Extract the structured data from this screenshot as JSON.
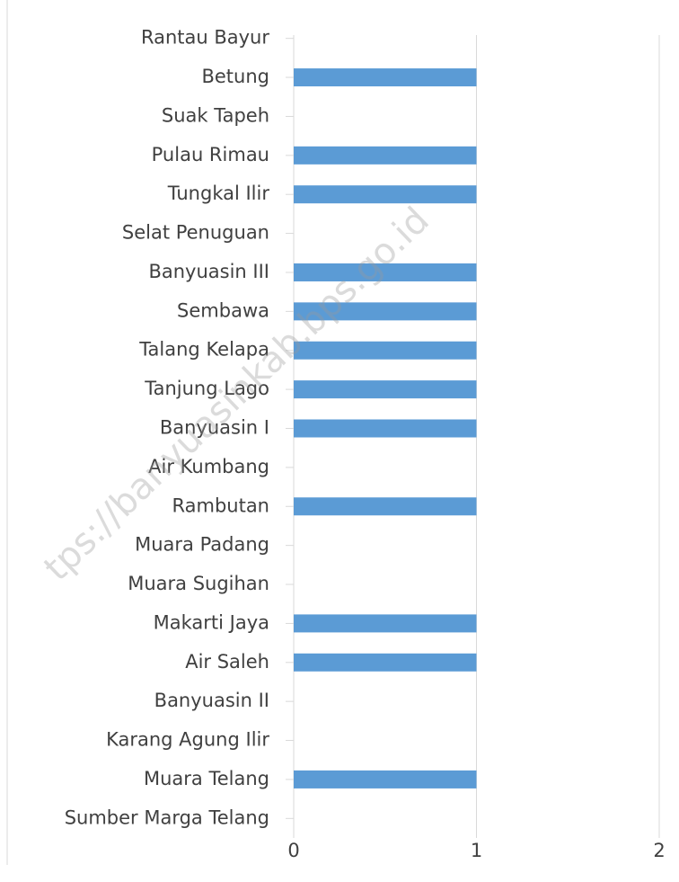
{
  "chart_data": {
    "type": "bar",
    "orientation": "horizontal",
    "categories": [
      "Rantau Bayur",
      "Betung",
      "Suak Tapeh",
      "Pulau Rimau",
      "Tungkal Ilir",
      "Selat Penuguan",
      "Banyuasin III",
      "Sembawa",
      "Talang Kelapa",
      "Tanjung Lago",
      "Banyuasin I",
      "Air Kumbang",
      "Rambutan",
      "Muara Padang",
      "Muara Sugihan",
      "Makarti Jaya",
      "Air Saleh",
      "Banyuasin II",
      "Karang Agung Ilir",
      "Muara Telang",
      "Sumber Marga Telang"
    ],
    "values": [
      0,
      1,
      0,
      1,
      1,
      0,
      1,
      1,
      1,
      1,
      1,
      0,
      1,
      0,
      0,
      1,
      1,
      0,
      0,
      1,
      0
    ],
    "color": "#5b9bd5",
    "xlim": [
      0,
      2
    ],
    "xticks": [
      0,
      1,
      2
    ],
    "grid": true,
    "watermark": "tps://banyuasinkab.bps.go.id"
  }
}
